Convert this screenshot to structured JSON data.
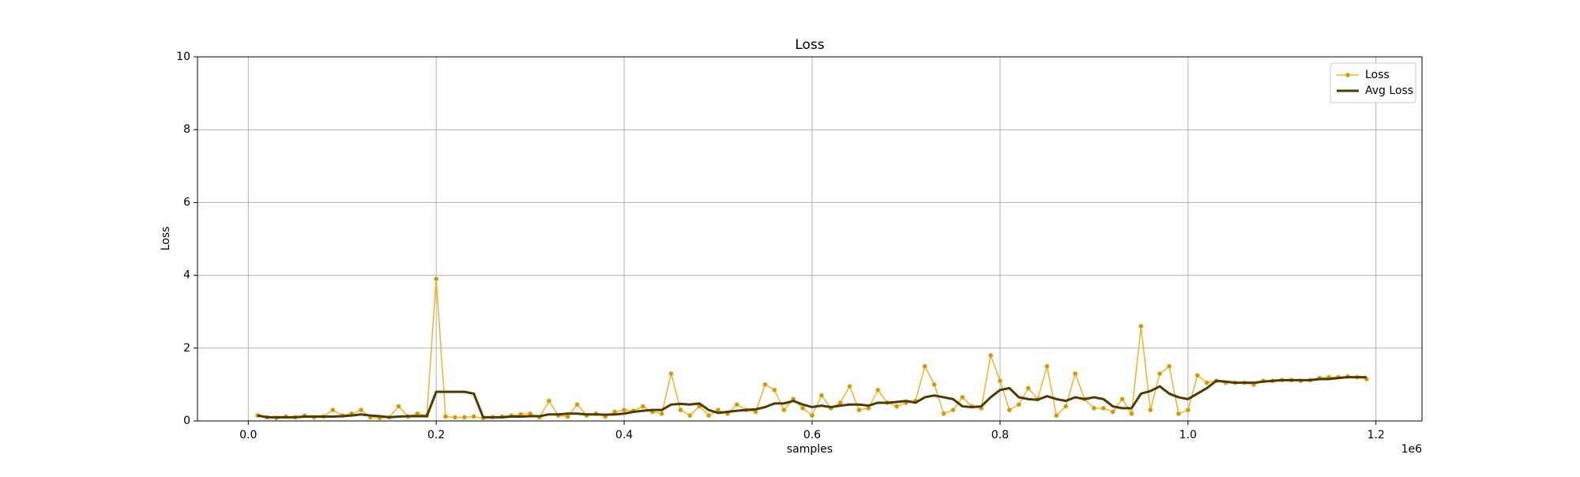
{
  "chart_data": {
    "type": "line",
    "title": "Loss",
    "x_label": "samples",
    "y_label": "Loss",
    "x_offset_label": "1e6",
    "x": [
      10000,
      20000,
      30000,
      40000,
      50000,
      60000,
      70000,
      80000,
      90000,
      100000,
      110000,
      120000,
      130000,
      140000,
      150000,
      160000,
      170000,
      180000,
      190000,
      200000,
      210000,
      220000,
      230000,
      240000,
      250000,
      260000,
      270000,
      280000,
      290000,
      300000,
      310000,
      320000,
      330000,
      340000,
      350000,
      360000,
      370000,
      380000,
      390000,
      400000,
      410000,
      420000,
      430000,
      440000,
      450000,
      460000,
      470000,
      480000,
      490000,
      500000,
      510000,
      520000,
      530000,
      540000,
      550000,
      560000,
      570000,
      580000,
      590000,
      600000,
      610000,
      620000,
      630000,
      640000,
      650000,
      660000,
      670000,
      680000,
      690000,
      700000,
      710000,
      720000,
      730000,
      740000,
      750000,
      760000,
      770000,
      780000,
      790000,
      800000,
      810000,
      820000,
      830000,
      840000,
      850000,
      860000,
      870000,
      880000,
      890000,
      900000,
      910000,
      920000,
      930000,
      940000,
      950000,
      960000,
      970000,
      980000,
      990000,
      1000000,
      1010000,
      1020000,
      1030000,
      1040000,
      1050000,
      1060000,
      1070000,
      1080000,
      1090000,
      1100000,
      1110000,
      1120000,
      1130000,
      1140000,
      1150000,
      1160000,
      1170000,
      1180000,
      1190000
    ],
    "series": [
      {
        "name": "Loss",
        "color": "#f0b429",
        "marker_color": "#c8941a",
        "markers": true,
        "line_width": 1.5,
        "values": [
          0.15,
          0.1,
          0.08,
          0.12,
          0.1,
          0.15,
          0.1,
          0.12,
          0.3,
          0.15,
          0.2,
          0.3,
          0.1,
          0.08,
          0.1,
          0.4,
          0.12,
          0.2,
          0.15,
          3.9,
          0.12,
          0.1,
          0.1,
          0.12,
          0.08,
          0.1,
          0.12,
          0.15,
          0.18,
          0.2,
          0.1,
          0.55,
          0.15,
          0.12,
          0.45,
          0.15,
          0.2,
          0.12,
          0.25,
          0.3,
          0.28,
          0.4,
          0.25,
          0.2,
          1.3,
          0.3,
          0.15,
          0.4,
          0.15,
          0.3,
          0.2,
          0.45,
          0.3,
          0.25,
          1.0,
          0.85,
          0.3,
          0.6,
          0.35,
          0.15,
          0.7,
          0.35,
          0.5,
          0.95,
          0.3,
          0.35,
          0.85,
          0.5,
          0.4,
          0.5,
          0.55,
          1.5,
          1.0,
          0.2,
          0.3,
          0.65,
          0.4,
          0.35,
          1.8,
          1.1,
          0.3,
          0.45,
          0.9,
          0.6,
          1.5,
          0.15,
          0.4,
          1.3,
          0.6,
          0.35,
          0.35,
          0.25,
          0.6,
          0.2,
          2.6,
          0.3,
          1.3,
          1.5,
          0.2,
          0.3,
          1.25,
          1.05,
          1.1,
          1.05,
          1.05,
          1.05,
          1.0,
          1.1,
          1.1,
          1.12,
          1.12,
          1.1,
          1.12,
          1.18,
          1.2,
          1.2,
          1.22,
          1.2,
          1.15
        ]
      },
      {
        "name": "Avg Loss",
        "color": "#4d3b06",
        "markers": false,
        "line_width": 3,
        "values": [
          0.15,
          0.1,
          0.1,
          0.1,
          0.1,
          0.12,
          0.12,
          0.12,
          0.12,
          0.13,
          0.15,
          0.18,
          0.15,
          0.13,
          0.1,
          0.12,
          0.13,
          0.13,
          0.13,
          0.8,
          0.8,
          0.8,
          0.8,
          0.75,
          0.1,
          0.1,
          0.1,
          0.12,
          0.12,
          0.13,
          0.13,
          0.18,
          0.18,
          0.2,
          0.2,
          0.18,
          0.18,
          0.17,
          0.18,
          0.2,
          0.25,
          0.28,
          0.3,
          0.3,
          0.45,
          0.47,
          0.45,
          0.48,
          0.3,
          0.22,
          0.25,
          0.28,
          0.3,
          0.32,
          0.38,
          0.48,
          0.48,
          0.55,
          0.45,
          0.38,
          0.42,
          0.38,
          0.42,
          0.45,
          0.45,
          0.42,
          0.5,
          0.5,
          0.52,
          0.55,
          0.5,
          0.65,
          0.7,
          0.65,
          0.6,
          0.4,
          0.38,
          0.4,
          0.65,
          0.85,
          0.9,
          0.65,
          0.6,
          0.58,
          0.68,
          0.6,
          0.55,
          0.65,
          0.6,
          0.65,
          0.6,
          0.4,
          0.35,
          0.35,
          0.75,
          0.82,
          0.95,
          0.75,
          0.65,
          0.6,
          0.75,
          0.9,
          1.1,
          1.08,
          1.05,
          1.05,
          1.05,
          1.08,
          1.1,
          1.12,
          1.12,
          1.12,
          1.12,
          1.15,
          1.15,
          1.18,
          1.2,
          1.2,
          1.2
        ]
      }
    ],
    "xlim": [
      -54000,
      1249000
    ],
    "xticks": [
      {
        "value": 0,
        "label": "0.0"
      },
      {
        "value": 200000,
        "label": "0.2"
      },
      {
        "value": 400000,
        "label": "0.4"
      },
      {
        "value": 600000,
        "label": "0.6"
      },
      {
        "value": 800000,
        "label": "0.8"
      },
      {
        "value": 1000000,
        "label": "1.0"
      },
      {
        "value": 1200000,
        "label": "1.2"
      }
    ],
    "ylim": [
      0,
      10
    ],
    "yticks": [
      0,
      2,
      4,
      6,
      8,
      10
    ],
    "grid": true,
    "legend": "upper right"
  }
}
